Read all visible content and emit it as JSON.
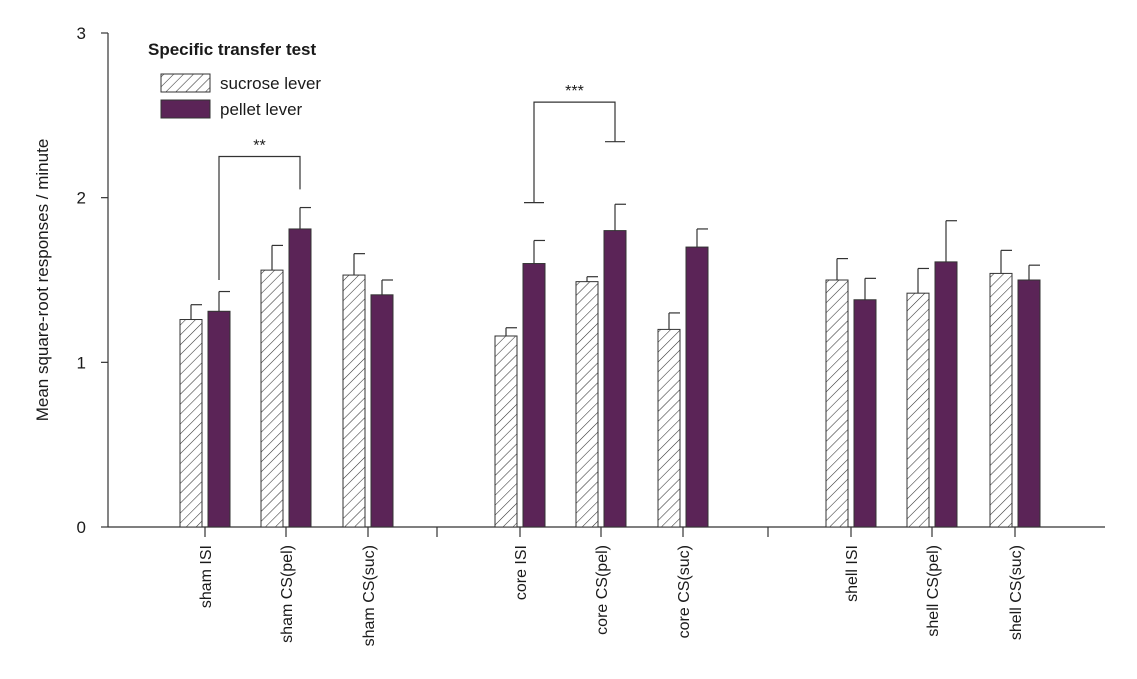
{
  "chart_data": {
    "type": "bar",
    "title": "Specific transfer test",
    "ylabel": "Mean square-root responses / minute",
    "xlabel": "",
    "ylim": [
      0,
      3
    ],
    "yticks": [
      0,
      1,
      2,
      3
    ],
    "grid": false,
    "legend_position": "top-left",
    "categories": [
      "sham ISI",
      "sham CS(pel)",
      "sham CS(suc)",
      "core ISI",
      "core CS(pel)",
      "core CS(suc)",
      "shell ISI",
      "shell CS(pel)",
      "shell CS(suc)"
    ],
    "groups": [
      "sham",
      "core",
      "shell"
    ],
    "series": [
      {
        "name": "sucrose lever",
        "pattern": "diagonal hatch",
        "color": "#ffffff",
        "values": [
          1.26,
          1.56,
          1.53,
          1.16,
          1.49,
          1.2,
          1.5,
          1.42,
          1.54
        ],
        "errors": [
          0.09,
          0.15,
          0.13,
          0.05,
          0.03,
          0.1,
          0.13,
          0.15,
          0.14
        ]
      },
      {
        "name": "pellet lever",
        "pattern": "solid",
        "color": "#5b2457",
        "values": [
          1.31,
          1.81,
          1.41,
          1.6,
          1.8,
          1.7,
          1.38,
          1.61,
          1.5
        ],
        "errors": [
          0.12,
          0.13,
          0.09,
          0.14,
          0.16,
          0.11,
          0.13,
          0.25,
          0.09
        ]
      }
    ],
    "annotations": [
      {
        "label": "**",
        "from_category": "sham ISI",
        "to_category": "sham CS(pel)",
        "y_left": 1.5,
        "y_right": 2.05,
        "y_top": 2.25
      },
      {
        "label": "***",
        "from_category": "core ISI",
        "to_category": "core CS(pel)",
        "y_left": 1.97,
        "y_right": 2.34,
        "y_top": 2.58
      }
    ]
  }
}
